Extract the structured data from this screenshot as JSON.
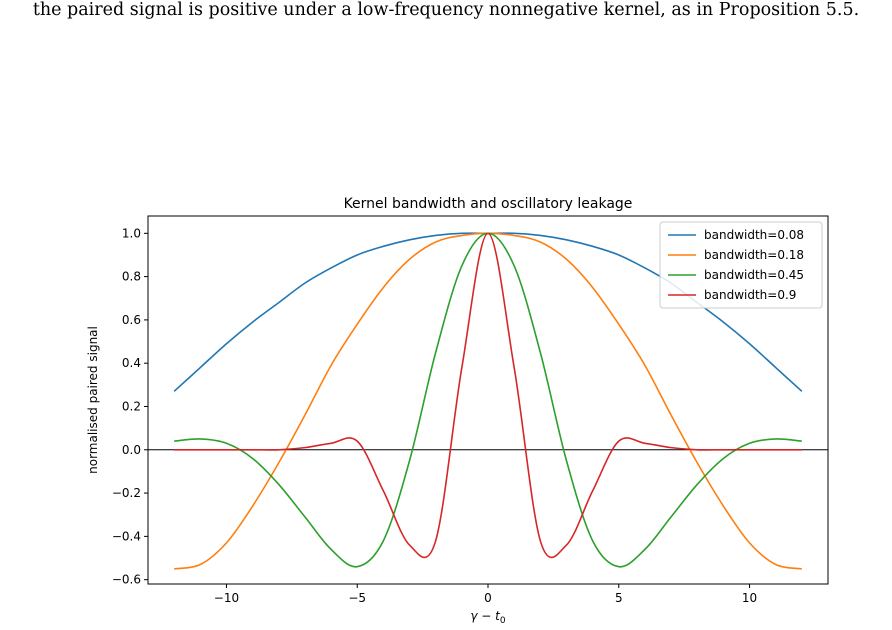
{
  "caption": "the paired signal is positive under a low-frequency nonnegative kernel, as in Proposition 5.5.",
  "chart_data": {
    "type": "line",
    "title": "Kernel bandwidth and oscillatory leakage",
    "xlabel_main": "γ − t",
    "xlabel_sub": "0",
    "ylabel": "normalised paired signal",
    "xlim": [
      -13.0,
      13.0
    ],
    "ylim": [
      -0.62,
      1.08
    ],
    "xticks": [
      -10,
      -5,
      0,
      5,
      10
    ],
    "xtick_labels": [
      "−10",
      "−5",
      "0",
      "5",
      "10"
    ],
    "yticks": [
      -0.6,
      -0.4,
      -0.2,
      0.0,
      0.2,
      0.4,
      0.6,
      0.8,
      1.0
    ],
    "ytick_labels": [
      "−0.6",
      "−0.4",
      "−0.2",
      "0.0",
      "0.2",
      "0.4",
      "0.6",
      "0.8",
      "1.0"
    ],
    "hline_y": 0.0,
    "legend_position": "top-right",
    "x": [
      -12,
      -11,
      -10,
      -9,
      -8,
      -7,
      -6,
      -5,
      -4,
      -3,
      -2,
      -1,
      0,
      1,
      2,
      3,
      4,
      5,
      6,
      7,
      8,
      9,
      10,
      11,
      12
    ],
    "series": [
      {
        "name": "bandwidth=0.08",
        "color": "#1f77b4",
        "values": [
          0.27,
          0.38,
          0.49,
          0.59,
          0.68,
          0.77,
          0.84,
          0.9,
          0.94,
          0.97,
          0.99,
          1.0,
          1.0,
          1.0,
          0.99,
          0.97,
          0.94,
          0.9,
          0.84,
          0.77,
          0.68,
          0.59,
          0.49,
          0.38,
          0.27
        ]
      },
      {
        "name": "bandwidth=0.18",
        "color": "#ff7f0e",
        "values": [
          -0.55,
          -0.53,
          -0.43,
          -0.26,
          -0.06,
          0.16,
          0.39,
          0.58,
          0.75,
          0.88,
          0.96,
          0.99,
          1.0,
          0.99,
          0.96,
          0.88,
          0.75,
          0.58,
          0.39,
          0.16,
          -0.06,
          -0.26,
          -0.43,
          -0.53,
          -0.55
        ]
      },
      {
        "name": "bandwidth=0.45",
        "color": "#2ca02c",
        "values": [
          0.04,
          0.05,
          0.03,
          -0.04,
          -0.16,
          -0.31,
          -0.46,
          -0.54,
          -0.42,
          -0.05,
          0.45,
          0.85,
          1.0,
          0.85,
          0.45,
          -0.05,
          -0.42,
          -0.54,
          -0.46,
          -0.31,
          -0.16,
          -0.04,
          0.03,
          0.05,
          0.04
        ]
      },
      {
        "name": "bandwidth=0.9",
        "color": "#d62728",
        "values": [
          0.0,
          0.0,
          0.0,
          0.0,
          0.0,
          0.01,
          0.03,
          0.04,
          -0.19,
          -0.44,
          -0.42,
          0.38,
          1.0,
          0.38,
          -0.42,
          -0.44,
          -0.19,
          0.04,
          0.03,
          0.01,
          0.0,
          0.0,
          0.0,
          0.0,
          0.0
        ]
      }
    ]
  }
}
